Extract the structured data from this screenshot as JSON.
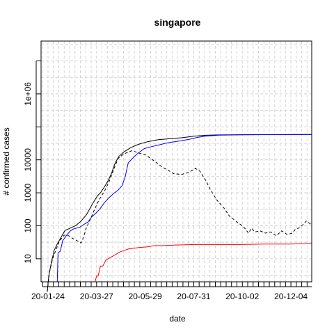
{
  "chart_data": {
    "type": "line",
    "title": "singapore",
    "xlabel": "date",
    "ylabel": "# confirmed cases",
    "y_scale": "log",
    "x_range": [
      "2020-01-15",
      "2020-12-31"
    ],
    "ylim": [
      2,
      40000000
    ],
    "grid": true,
    "x_tick_labels": [
      "20-01-24",
      "20-03-27",
      "20-05-29",
      "20-07-31",
      "20-10-02",
      "20-12-04"
    ],
    "x_tick_dates": [
      "2020-01-24",
      "2020-03-27",
      "2020-05-29",
      "2020-07-31",
      "2020-10-02",
      "2020-12-04"
    ],
    "y_tick_labels": [
      "10",
      "100",
      "1000",
      "10000",
      "1e+06"
    ],
    "y_tick_values": [
      10,
      100,
      1000,
      10000,
      1000000
    ],
    "series": [
      {
        "color": "#000000",
        "dash": "solid",
        "points": [
          [
            "2020-01-23",
            1
          ],
          [
            "2020-01-25",
            3
          ],
          [
            "2020-01-28",
            7
          ],
          [
            "2020-02-01",
            18
          ],
          [
            "2020-02-05",
            28
          ],
          [
            "2020-02-10",
            45
          ],
          [
            "2020-02-15",
            72
          ],
          [
            "2020-02-22",
            85
          ],
          [
            "2020-02-29",
            102
          ],
          [
            "2020-03-07",
            140
          ],
          [
            "2020-03-14",
            220
          ],
          [
            "2020-03-21",
            432
          ],
          [
            "2020-03-28",
            802
          ],
          [
            "2020-04-01",
            1000
          ],
          [
            "2020-04-05",
            1375
          ],
          [
            "2020-04-10",
            2108
          ],
          [
            "2020-04-15",
            3699
          ],
          [
            "2020-04-20",
            8014
          ],
          [
            "2020-04-25",
            12693
          ],
          [
            "2020-05-01",
            17101
          ],
          [
            "2020-05-10",
            23336
          ],
          [
            "2020-05-20",
            29364
          ],
          [
            "2020-06-01",
            35292
          ],
          [
            "2020-06-15",
            40818
          ],
          [
            "2020-07-01",
            44122
          ],
          [
            "2020-07-15",
            46630
          ],
          [
            "2020-08-01",
            52512
          ],
          [
            "2020-08-15",
            55580
          ],
          [
            "2020-09-01",
            56908
          ],
          [
            "2020-10-01",
            57765
          ],
          [
            "2020-11-01",
            58019
          ],
          [
            "2020-12-01",
            58228
          ],
          [
            "2020-12-31",
            58569
          ]
        ]
      },
      {
        "color": "#000000",
        "dash": "dashed",
        "points": [
          [
            "2020-01-23",
            1
          ],
          [
            "2020-01-26",
            4
          ],
          [
            "2020-01-30",
            10
          ],
          [
            "2020-02-03",
            18
          ],
          [
            "2020-02-08",
            35
          ],
          [
            "2020-02-14",
            52
          ],
          [
            "2020-02-20",
            50
          ],
          [
            "2020-02-26",
            40
          ],
          [
            "2020-03-03",
            34
          ],
          [
            "2020-03-07",
            30
          ],
          [
            "2020-03-10",
            45
          ],
          [
            "2020-03-14",
            90
          ],
          [
            "2020-03-18",
            140
          ],
          [
            "2020-03-24",
            300
          ],
          [
            "2020-03-30",
            600
          ],
          [
            "2020-04-06",
            1100
          ],
          [
            "2020-04-12",
            2100
          ],
          [
            "2020-04-18",
            5000
          ],
          [
            "2020-04-24",
            11000
          ],
          [
            "2020-05-01",
            15000
          ],
          [
            "2020-05-08",
            17500
          ],
          [
            "2020-05-12",
            19000
          ],
          [
            "2020-05-18",
            17000
          ],
          [
            "2020-05-25",
            15000
          ],
          [
            "2020-05-30",
            14000
          ],
          [
            "2020-06-05",
            11000
          ],
          [
            "2020-06-12",
            8500
          ],
          [
            "2020-06-20",
            6000
          ],
          [
            "2020-06-28",
            4800
          ],
          [
            "2020-07-05",
            3800
          ],
          [
            "2020-07-15",
            3600
          ],
          [
            "2020-07-25",
            4200
          ],
          [
            "2020-08-02",
            5500
          ],
          [
            "2020-08-08",
            4500
          ],
          [
            "2020-08-15",
            2500
          ],
          [
            "2020-08-22",
            1200
          ],
          [
            "2020-08-30",
            600
          ],
          [
            "2020-09-08",
            350
          ],
          [
            "2020-09-15",
            200
          ],
          [
            "2020-09-25",
            130
          ],
          [
            "2020-10-02",
            100
          ],
          [
            "2020-10-06",
            80
          ],
          [
            "2020-10-10",
            60
          ],
          [
            "2020-10-14",
            85
          ],
          [
            "2020-10-18",
            65
          ],
          [
            "2020-10-25",
            70
          ],
          [
            "2020-11-01",
            60
          ],
          [
            "2020-11-08",
            65
          ],
          [
            "2020-11-15",
            50
          ],
          [
            "2020-11-22",
            70
          ],
          [
            "2020-11-29",
            55
          ],
          [
            "2020-12-06",
            60
          ],
          [
            "2020-12-10",
            80
          ],
          [
            "2020-12-14",
            85
          ],
          [
            "2020-12-20",
            110
          ],
          [
            "2020-12-24",
            140
          ],
          [
            "2020-12-28",
            120
          ],
          [
            "2020-12-31",
            105
          ]
        ]
      },
      {
        "color": "#0000ff",
        "dash": "solid",
        "points": [
          [
            "2020-02-04",
            2
          ],
          [
            "2020-02-05",
            2
          ],
          [
            "2020-02-06",
            15
          ],
          [
            "2020-02-09",
            17
          ],
          [
            "2020-02-12",
            35
          ],
          [
            "2020-02-18",
            55
          ],
          [
            "2020-02-22",
            70
          ],
          [
            "2020-02-26",
            80
          ],
          [
            "2020-03-01",
            85
          ],
          [
            "2020-03-05",
            90
          ],
          [
            "2020-03-08",
            100
          ],
          [
            "2020-03-12",
            115
          ],
          [
            "2020-03-16",
            130
          ],
          [
            "2020-03-20",
            180
          ],
          [
            "2020-03-26",
            240
          ],
          [
            "2020-04-01",
            340
          ],
          [
            "2020-04-06",
            500
          ],
          [
            "2020-04-12",
            700
          ],
          [
            "2020-04-18",
            950
          ],
          [
            "2020-04-24",
            1200
          ],
          [
            "2020-04-29",
            1650
          ],
          [
            "2020-05-03",
            3000
          ],
          [
            "2020-05-07",
            8000
          ],
          [
            "2020-05-14",
            12000
          ],
          [
            "2020-05-20",
            16000
          ],
          [
            "2020-05-28",
            22000
          ],
          [
            "2020-06-06",
            25000
          ],
          [
            "2020-06-15",
            28000
          ],
          [
            "2020-06-25",
            32000
          ],
          [
            "2020-07-05",
            35000
          ],
          [
            "2020-07-15",
            38000
          ],
          [
            "2020-07-25",
            42000
          ],
          [
            "2020-08-05",
            48000
          ],
          [
            "2020-08-15",
            52000
          ],
          [
            "2020-09-01",
            56000
          ],
          [
            "2020-10-01",
            57500
          ],
          [
            "2020-11-01",
            58000
          ],
          [
            "2020-12-01",
            58200
          ],
          [
            "2020-12-31",
            58500
          ]
        ]
      },
      {
        "color": "#ff0000",
        "dash": "solid",
        "points": [
          [
            "2020-03-21",
            2
          ],
          [
            "2020-03-23",
            2
          ],
          [
            "2020-03-25",
            2
          ],
          [
            "2020-03-27",
            3
          ],
          [
            "2020-03-29",
            3
          ],
          [
            "2020-04-01",
            6
          ],
          [
            "2020-04-04",
            6
          ],
          [
            "2020-04-08",
            9
          ],
          [
            "2020-04-11",
            10
          ],
          [
            "2020-04-14",
            11
          ],
          [
            "2020-04-17",
            12
          ],
          [
            "2020-04-22",
            14
          ],
          [
            "2020-04-26",
            16
          ],
          [
            "2020-05-02",
            18
          ],
          [
            "2020-05-08",
            20
          ],
          [
            "2020-05-15",
            21
          ],
          [
            "2020-05-22",
            22
          ],
          [
            "2020-06-01",
            23
          ],
          [
            "2020-06-10",
            25
          ],
          [
            "2020-06-20",
            25
          ],
          [
            "2020-07-05",
            26
          ],
          [
            "2020-08-01",
            27
          ],
          [
            "2020-09-01",
            27
          ],
          [
            "2020-10-01",
            27
          ],
          [
            "2020-11-01",
            28
          ],
          [
            "2020-12-01",
            28
          ],
          [
            "2020-12-31",
            29
          ]
        ]
      }
    ]
  }
}
